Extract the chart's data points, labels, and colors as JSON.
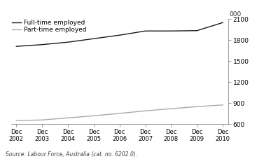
{
  "fulltime": [
    1710,
    1735,
    1770,
    1820,
    1870,
    1930,
    1930,
    1935,
    2050
  ],
  "parttime": [
    650,
    658,
    688,
    718,
    752,
    788,
    820,
    848,
    873
  ],
  "fulltime_color": "#1a1a1a",
  "parttime_color": "#aaaaaa",
  "ylim": [
    600,
    2100
  ],
  "yticks": [
    600,
    900,
    1200,
    1500,
    1800,
    2100
  ],
  "xlabel_years": [
    "Dec\n2002",
    "Dec\n2003",
    "Dec\n2004",
    "Dec\n2005",
    "Dec\n2006",
    "Dec\n2007",
    "Dec\n2008",
    "Dec\n2009",
    "Dec\n2010"
  ],
  "legend_fulltime": "Full-time employed",
  "legend_parttime": "Part-time employed",
  "ylabel_unit": "000",
  "source_text": "Source: Labour Force, Australia (cat. no. 6202.0).",
  "line_width": 1.0
}
